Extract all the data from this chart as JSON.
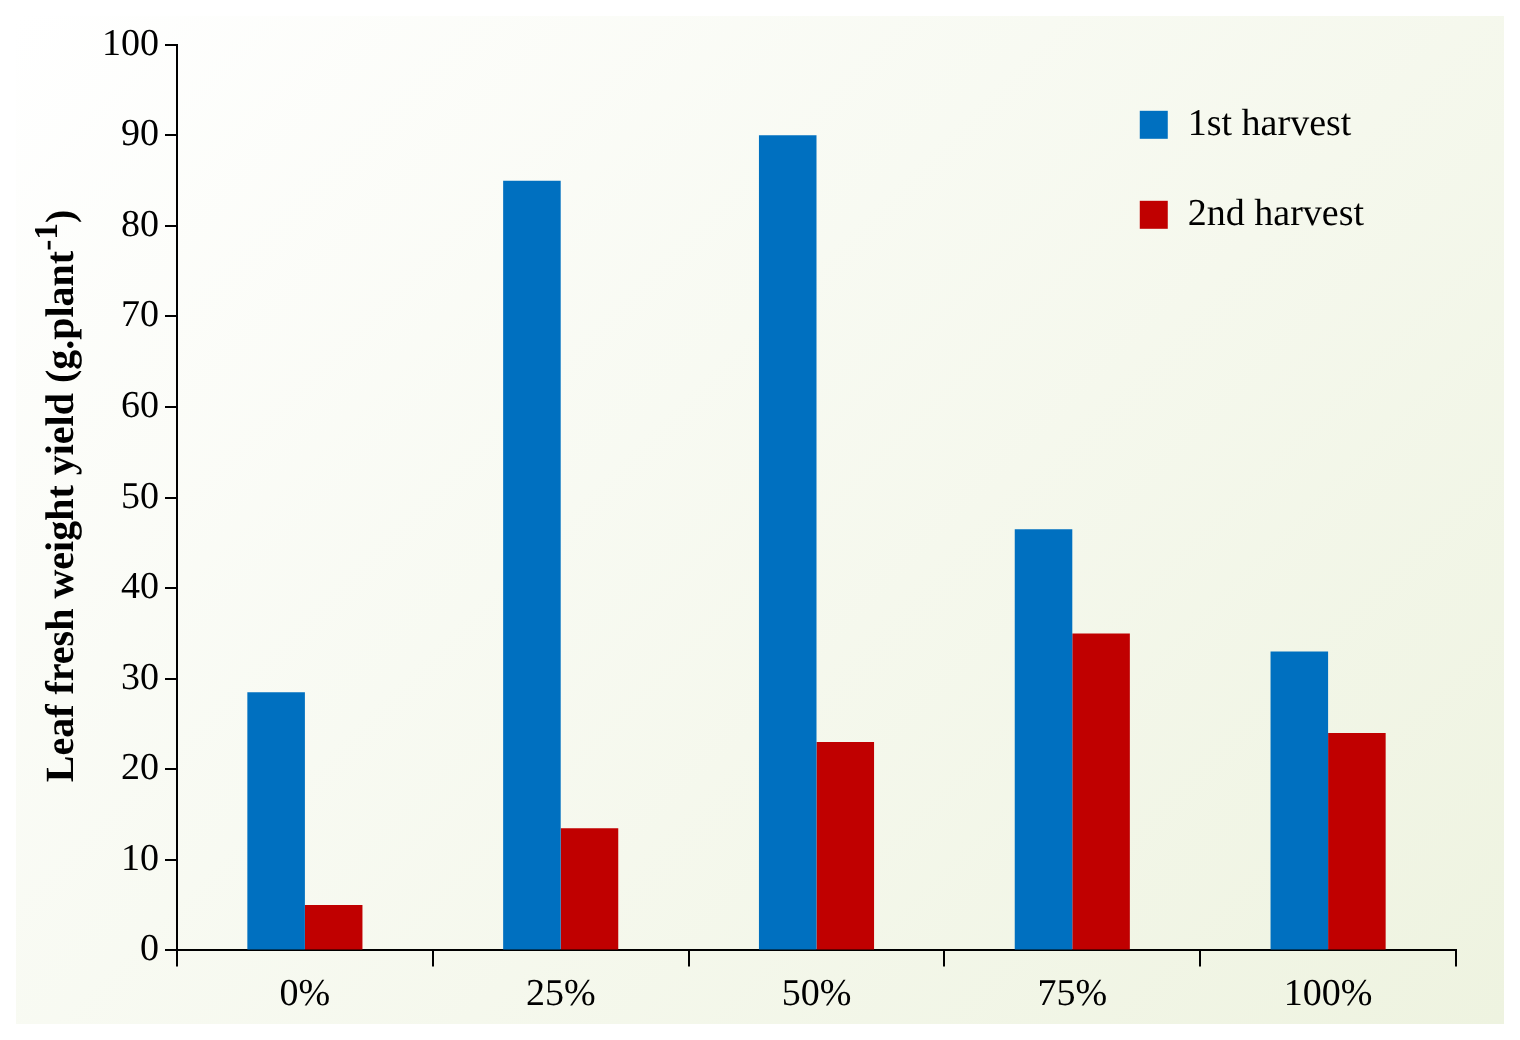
{
  "chart_data": {
    "type": "bar",
    "ylabel": "Leaf fresh weight yield (g.plant$^{-1}$)",
    "categories": [
      "0%",
      "25%",
      "50%",
      "75%",
      "100%"
    ],
    "series": [
      {
        "name": "1st harvest",
        "color": "#0070c0",
        "values": [
          28.5,
          85,
          90,
          46.5,
          33
        ]
      },
      {
        "name": "2nd harvest",
        "color": "#c00000",
        "values": [
          5,
          13.5,
          23,
          35,
          24
        ]
      }
    ],
    "ylim": [
      0,
      100
    ],
    "yticks": [
      0,
      10,
      20,
      30,
      40,
      50,
      60,
      70,
      80,
      90,
      100
    ],
    "grid": false,
    "legend": "top right"
  }
}
